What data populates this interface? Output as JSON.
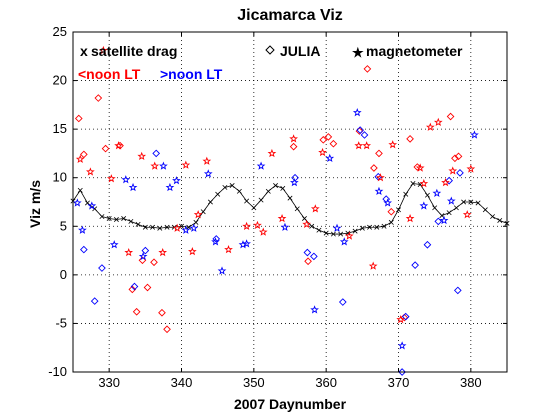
{
  "chart_data": {
    "type": "scatter",
    "title": "Jicamarca Viz",
    "xlabel": "2007 Daynumber",
    "ylabel": "Viz m/s",
    "xlim": [
      325,
      385
    ],
    "ylim": [
      -10,
      25
    ],
    "xticks": [
      330,
      340,
      350,
      360,
      370,
      380
    ],
    "yticks": [
      -10,
      -5,
      0,
      5,
      10,
      15,
      20,
      25
    ],
    "grid": true,
    "legend": {
      "placement": "top",
      "entries": [
        {
          "marker": "x",
          "label": "satellite drag"
        },
        {
          "marker": "diamond",
          "label": "JULIA"
        },
        {
          "marker": "star",
          "label": "magnetometer"
        }
      ],
      "notes": [
        {
          "text": "<noon LT",
          "color": "#ff0000"
        },
        {
          "text": ">noon LT",
          "color": "#0000ff"
        }
      ]
    },
    "colors": {
      "before_noon": "#ff0000",
      "after_noon": "#0000ff",
      "satellite_drag": "#000000"
    },
    "series": [
      {
        "label": "satellite drag",
        "marker": "x",
        "color": "#000000",
        "x": [
          325,
          326,
          327,
          328,
          329,
          330,
          331,
          332,
          333,
          334,
          335,
          336,
          337,
          338,
          339,
          340,
          341,
          342,
          343,
          344,
          345,
          346,
          347,
          348,
          349,
          350,
          351,
          352,
          353,
          354,
          355,
          356,
          357,
          358,
          359,
          360,
          361,
          362,
          363,
          364,
          365,
          366,
          367,
          368,
          369,
          370,
          371,
          372,
          373,
          374,
          375,
          376,
          377,
          378,
          379,
          380,
          381,
          382,
          383,
          384,
          385
        ],
        "y": [
          7.6,
          8.7,
          7.4,
          6.8,
          6.0,
          5.8,
          5.7,
          5.8,
          5.5,
          5.2,
          4.9,
          4.9,
          4.8,
          4.9,
          4.9,
          5.0,
          4.9,
          5.4,
          6.5,
          7.5,
          8.3,
          9.0,
          9.2,
          8.6,
          7.6,
          6.9,
          7.7,
          8.6,
          9.2,
          8.9,
          7.9,
          6.8,
          5.8,
          5.0,
          4.6,
          4.3,
          4.2,
          4.2,
          4.3,
          4.5,
          4.8,
          4.9,
          4.9,
          5.0,
          5.4,
          6.7,
          8.3,
          9.4,
          9.3,
          8.2,
          6.9,
          6.1,
          6.4,
          6.9,
          7.5,
          7.5,
          7.4,
          6.7,
          6.0,
          5.6,
          5.3
        ]
      },
      {
        "label": "JULIA <noon LT",
        "marker": "diamond",
        "color": "#ff0000",
        "x": [
          325.8,
          326.5,
          328.5,
          329.5,
          331.5,
          333.2,
          333.8,
          334.6,
          335.3,
          336.2,
          337.3,
          338.0,
          355.5,
          357.5,
          359.6,
          360.3,
          361.0,
          364.6,
          365.7,
          366.6,
          367.3,
          369.0,
          370.8,
          371.6,
          372.6,
          377.2,
          377.8,
          378.3
        ],
        "y": [
          16.1,
          12.4,
          18.2,
          13.0,
          13.3,
          -1.5,
          -3.8,
          1.5,
          -1.3,
          1.3,
          -3.9,
          -5.6,
          13.2,
          1.4,
          13.9,
          14.2,
          13.5,
          14.8,
          21.2,
          11.0,
          12.5,
          6.5,
          -4.4,
          14.0,
          11.1,
          16.3,
          12.0,
          12.2
        ]
      },
      {
        "label": "JULIA >noon LT",
        "marker": "diamond",
        "color": "#0000ff",
        "x": [
          326.5,
          328.0,
          329.0,
          333.5,
          335.0,
          336.5,
          344.8,
          355.7,
          357.4,
          358.3,
          362.3,
          364.7,
          365.3,
          367.2,
          368.3,
          370.5,
          371.0,
          372.3,
          374.0,
          375.5,
          377.0,
          378.2,
          378.5
        ],
        "y": [
          2.6,
          -2.7,
          0.7,
          -1.2,
          2.5,
          12.5,
          3.7,
          10.0,
          2.3,
          1.9,
          -2.8,
          14.9,
          14.4,
          10.1,
          7.8,
          -10.0,
          -4.3,
          1.0,
          3.1,
          5.5,
          9.7,
          -1.6,
          10.5
        ]
      },
      {
        "label": "magnetometer <noon LT",
        "marker": "star",
        "color": "#ff0000",
        "x": [
          326.0,
          327.4,
          329.2,
          330.3,
          331.3,
          332.7,
          334.5,
          336.3,
          337.4,
          339.4,
          340.6,
          341.5,
          342.3,
          343.5,
          346.5,
          349.0,
          350.5,
          351.3,
          352.5,
          353.9,
          355.5,
          357.3,
          358.5,
          359.5,
          363.2,
          364.5,
          365.6,
          366.5,
          367.5,
          369.2,
          370.3,
          371.6,
          373.0,
          373.5,
          374.4,
          375.5,
          376.5,
          377.5,
          379.5,
          380.0
        ],
        "y": [
          11.9,
          10.6,
          23.1,
          9.9,
          13.3,
          2.3,
          12.2,
          11.2,
          2.3,
          4.8,
          11.3,
          2.4,
          6.2,
          11.7,
          2.6,
          5.0,
          5.1,
          4.4,
          12.5,
          5.8,
          14.0,
          5.2,
          6.8,
          12.6,
          4.0,
          13.3,
          13.3,
          0.9,
          10.0,
          13.4,
          -4.6,
          5.8,
          11.0,
          9.4,
          15.2,
          15.7,
          9.5,
          10.7,
          6.2,
          10.9
        ]
      },
      {
        "label": "magnetometer >noon LT",
        "marker": "star",
        "color": "#0000ff",
        "x": [
          325.6,
          326.3,
          327.6,
          330.7,
          332.3,
          333.3,
          334.7,
          337.5,
          338.4,
          339.3,
          340.6,
          341.7,
          343.7,
          344.7,
          345.6,
          348.5,
          349.0,
          351.0,
          354.3,
          355.6,
          358.4,
          360.5,
          361.5,
          362.5,
          364.3,
          367.3,
          368.5,
          370.5,
          373.5,
          375.3,
          376.3,
          377.3,
          380.5
        ],
        "y": [
          7.4,
          4.6,
          7.1,
          3.1,
          9.8,
          9.0,
          1.9,
          11.2,
          9.0,
          9.7,
          4.6,
          4.8,
          10.4,
          3.4,
          0.4,
          3.1,
          3.2,
          11.2,
          4.9,
          9.5,
          -3.6,
          12.0,
          4.8,
          3.4,
          16.7,
          8.6,
          7.4,
          -7.3,
          7.1,
          8.4,
          5.6,
          7.6,
          14.4
        ]
      }
    ]
  }
}
